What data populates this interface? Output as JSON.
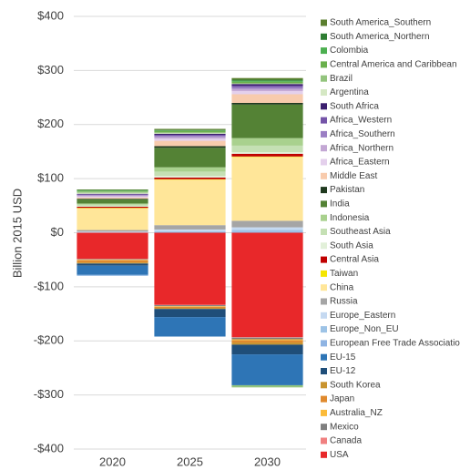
{
  "chart_data": {
    "type": "stacked_bar",
    "y_label": "Billion 2015 USD",
    "categories": [
      "2020",
      "2025",
      "2030"
    ],
    "ylim": [
      -400,
      400
    ],
    "yticks": [
      {
        "value": -400,
        "label": "-$400"
      },
      {
        "value": -300,
        "label": "-$300"
      },
      {
        "value": -200,
        "label": "-$200"
      },
      {
        "value": -100,
        "label": "-$100"
      },
      {
        "value": 0,
        "label": "$0"
      },
      {
        "value": 100,
        "label": "$100"
      },
      {
        "value": 200,
        "label": "$200"
      },
      {
        "value": 300,
        "label": "$300"
      },
      {
        "value": 400,
        "label": "$400"
      }
    ],
    "grid": true,
    "legend": "right",
    "series": [
      {
        "name": "USA",
        "color": "#e8282a",
        "values": [
          -48,
          -133,
          -193
        ]
      },
      {
        "name": "Canada",
        "color": "#f08080",
        "values": [
          -1,
          -1,
          -1
        ]
      },
      {
        "name": "Mexico",
        "color": "#7f7f7f",
        "values": [
          -1,
          -2,
          -3
        ]
      },
      {
        "name": "Australia_NZ",
        "color": "#fbbb3a",
        "values": [
          -1,
          -1,
          -2
        ]
      },
      {
        "name": "Japan",
        "color": "#e08a2e",
        "values": [
          -4,
          -2,
          -4
        ]
      },
      {
        "name": "South Korea",
        "color": "#c9942f",
        "values": [
          -2,
          -2,
          -4
        ]
      },
      {
        "name": "EU-12",
        "color": "#1f4e79",
        "values": [
          -4,
          -15,
          -18
        ]
      },
      {
        "name": "EU-15",
        "color": "#2e75b6",
        "values": [
          -17,
          -36,
          -57
        ]
      },
      {
        "name": "European Free Trade Association",
        "color": "#8fb4e3",
        "values": [
          -1,
          1,
          2
        ]
      },
      {
        "name": "Europe_Non_EU",
        "color": "#9dc3e6",
        "values": [
          -1,
          2,
          3
        ]
      },
      {
        "name": "Europe_Eastern",
        "color": "#c5d9f1",
        "values": [
          2,
          3,
          5
        ]
      },
      {
        "name": "Russia",
        "color": "#a5a5a5",
        "values": [
          3,
          8,
          12
        ]
      },
      {
        "name": "China",
        "color": "#ffe699",
        "values": [
          40,
          84,
          118
        ]
      },
      {
        "name": "Taiwan",
        "color": "#f5e600",
        "values": [
          1,
          1,
          1
        ]
      },
      {
        "name": "Central Asia",
        "color": "#c00000",
        "values": [
          2,
          3,
          5
        ]
      },
      {
        "name": "South Asia",
        "color": "#e2f0d9",
        "values": [
          1,
          3,
          3
        ]
      },
      {
        "name": "Southeast Asia",
        "color": "#c5e0b4",
        "values": [
          3,
          8,
          12
        ]
      },
      {
        "name": "Indonesia",
        "color": "#a9d18e",
        "values": [
          2,
          8,
          14
        ]
      },
      {
        "name": "India",
        "color": "#548235",
        "values": [
          8,
          36,
          62
        ]
      },
      {
        "name": "Pakistan",
        "color": "#203a1f",
        "values": [
          1,
          3,
          3
        ]
      },
      {
        "name": "Middle East",
        "color": "#f8cbad",
        "values": [
          2,
          10,
          16
        ]
      },
      {
        "name": "Africa_Eastern",
        "color": "#e4d0ec",
        "values": [
          2,
          4,
          6
        ]
      },
      {
        "name": "Africa_Northern",
        "color": "#c3a7d4",
        "values": [
          2,
          3,
          4
        ]
      },
      {
        "name": "Africa_Southern",
        "color": "#9b7fc4",
        "values": [
          1,
          2,
          3
        ]
      },
      {
        "name": "Africa_Western",
        "color": "#7454a8",
        "values": [
          1,
          2,
          3
        ]
      },
      {
        "name": "South Africa",
        "color": "#3b1f6f",
        "values": [
          1,
          2,
          3
        ]
      },
      {
        "name": "Argentina",
        "color": "#d5e8c4",
        "values": [
          2,
          1,
          1
        ]
      },
      {
        "name": "Brazil",
        "color": "#93c47d",
        "values": [
          2,
          2,
          -4
        ]
      },
      {
        "name": "Central America and Caribbean",
        "color": "#6ab04c",
        "values": [
          1,
          2,
          3
        ]
      },
      {
        "name": "Colombia",
        "color": "#4caf50",
        "values": [
          1,
          1,
          2
        ]
      },
      {
        "name": "South America_Northern",
        "color": "#2e7d32",
        "values": [
          1,
          1,
          2
        ]
      },
      {
        "name": "South America_Southern",
        "color": "#5b7f2f",
        "values": [
          1,
          2,
          3
        ]
      }
    ]
  }
}
